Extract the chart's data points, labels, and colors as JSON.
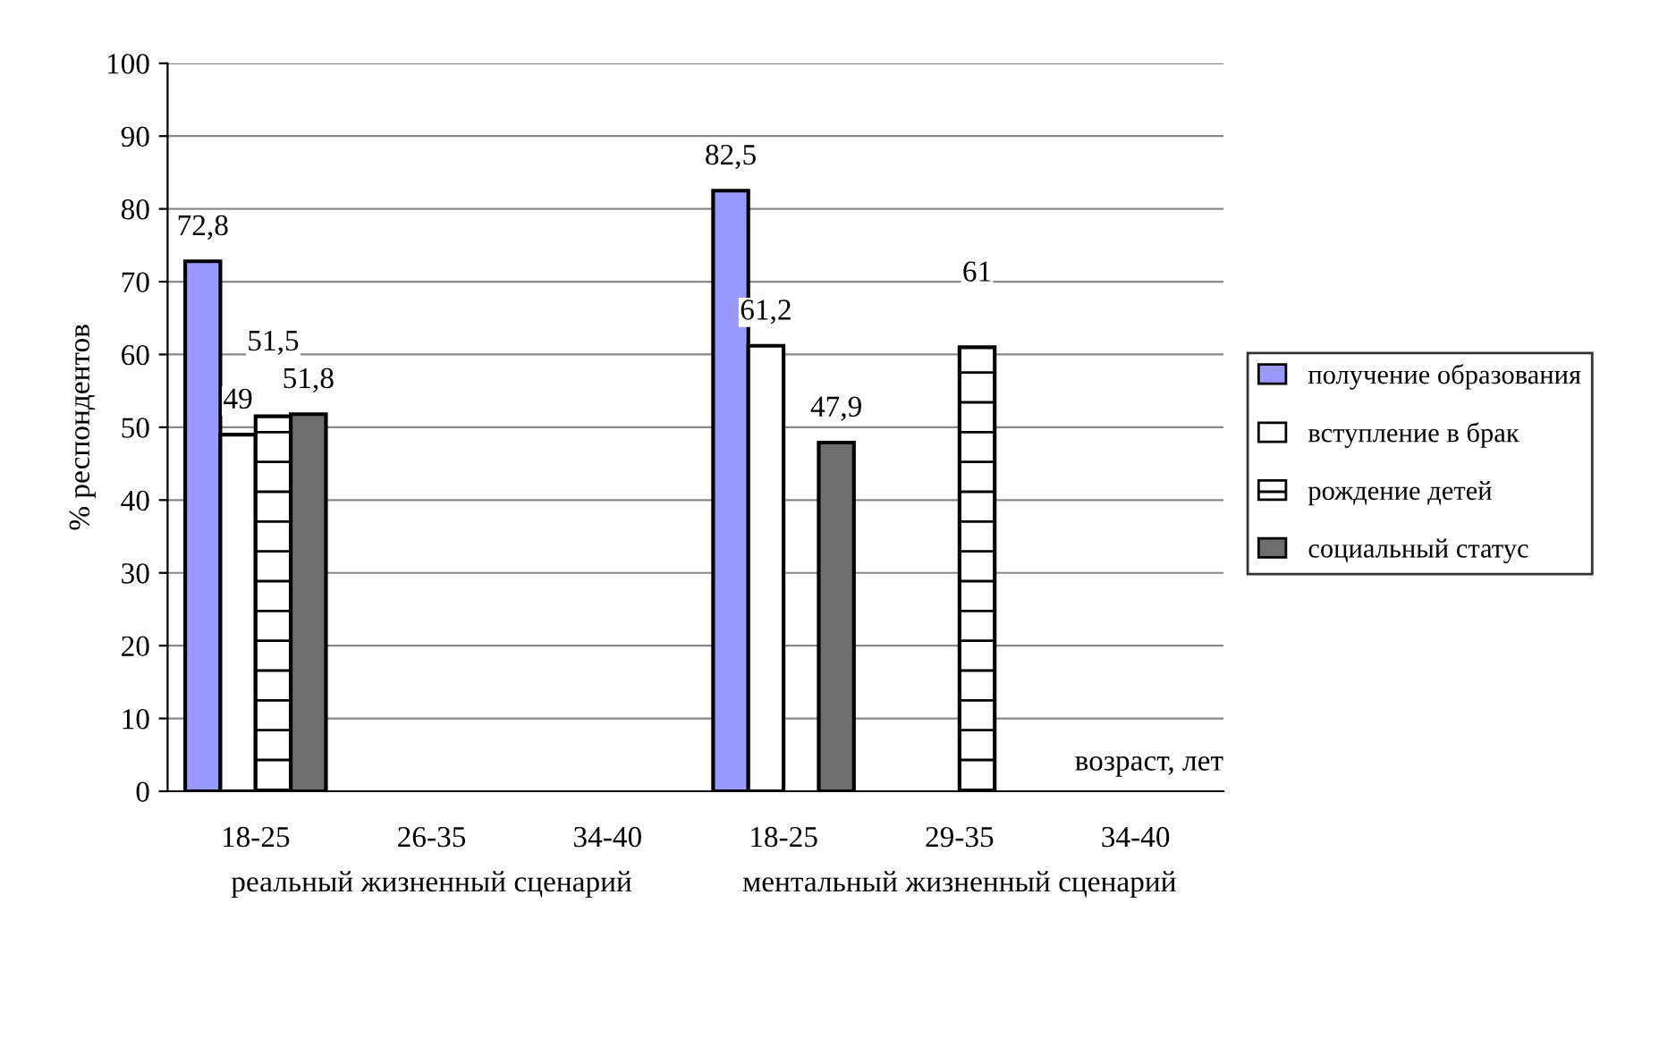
{
  "chart_data": {
    "type": "bar",
    "ylabel": "% респондентов",
    "xlabel": "возраст, лет",
    "categories": [
      "18-25",
      "26-35",
      "34-40",
      "18-25",
      "29-35",
      "34-40"
    ],
    "series": [
      {
        "name": "получение образования",
        "color": "#9999ff",
        "values": [
          72.8,
          null,
          null,
          82.5,
          null,
          null
        ],
        "value_labels": [
          "72,8",
          null,
          null,
          "82,5",
          null,
          null
        ]
      },
      {
        "name": "вступление в брак",
        "color": "#ffffff",
        "values": [
          49,
          null,
          null,
          61.2,
          null,
          null
        ],
        "value_labels": [
          "49",
          null,
          null,
          "61,2",
          null,
          null
        ]
      },
      {
        "name": "рождение детей",
        "color": "#ffffff",
        "values": [
          51.5,
          null,
          null,
          null,
          61,
          null
        ],
        "value_labels": [
          "51,5",
          null,
          null,
          null,
          "61",
          null
        ]
      },
      {
        "name": "социальный статус",
        "color": "#6e6e6e",
        "values": [
          51.8,
          null,
          null,
          47.9,
          null,
          null
        ],
        "value_labels": [
          "51,8",
          null,
          null,
          "47,9",
          null,
          null
        ]
      }
    ],
    "ylim": [
      0,
      100
    ],
    "yticks": [
      0,
      10,
      20,
      30,
      40,
      50,
      60,
      70,
      80,
      90,
      100
    ],
    "grid": "y",
    "legend": "right",
    "annotations": [
      "реальный жизненный сценарий",
      "ментальный жизненный сценарий"
    ]
  }
}
